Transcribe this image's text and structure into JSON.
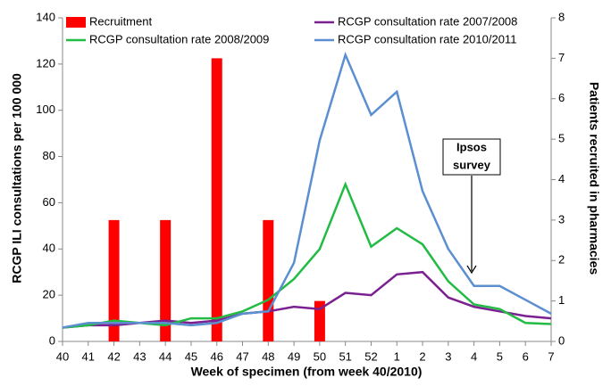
{
  "chart_data": {
    "type": "combo",
    "x_label": "Week of specimen (from week 40/2010)",
    "y_label": "RCGP ILI consultations per 100 000",
    "y2_label": "Patients recruited in pharmacies",
    "categories": [
      "40",
      "41",
      "42",
      "43",
      "44",
      "45",
      "46",
      "47",
      "48",
      "49",
      "50",
      "51",
      "52",
      "1",
      "2",
      "3",
      "4",
      "5",
      "6",
      "7"
    ],
    "ylim": [
      0,
      140
    ],
    "yticks": [
      0,
      20,
      40,
      60,
      80,
      100,
      120,
      140
    ],
    "y2lim": [
      0,
      8
    ],
    "y2ticks": [
      0,
      1,
      2,
      3,
      4,
      5,
      6,
      7,
      8
    ],
    "series": [
      {
        "name": "Recruitment",
        "type": "bar",
        "axis": "y2",
        "color": "#ff0000",
        "values": [
          null,
          null,
          3,
          null,
          3,
          null,
          7,
          null,
          3,
          null,
          1,
          null,
          null,
          null,
          null,
          null,
          null,
          null,
          null,
          null
        ]
      },
      {
        "name": "RCGP consultation rate 2007/2008",
        "type": "line",
        "color": "#7b2090",
        "values": [
          6,
          7,
          7,
          8,
          9,
          8,
          9,
          12,
          13,
          15,
          14,
          21,
          20,
          29,
          30,
          19,
          15,
          13,
          11,
          10
        ]
      },
      {
        "name": "RCGP consultation rate 2008/2009",
        "type": "line",
        "color": "#22bb44",
        "values": [
          6,
          7,
          9,
          8,
          7,
          10,
          10,
          13,
          18,
          27,
          40,
          68,
          41,
          49,
          42,
          26,
          16,
          14,
          8,
          7.5
        ]
      },
      {
        "name": "RCGP consultation rate 2010/2011",
        "type": "line",
        "color": "#5b8fd0",
        "values": [
          6,
          8,
          8,
          8,
          8,
          7,
          8,
          12,
          13,
          34,
          87,
          124,
          98,
          108,
          65,
          40,
          24,
          24,
          18,
          12
        ]
      }
    ],
    "annotation": [
      "Ipsos",
      "survey"
    ]
  }
}
